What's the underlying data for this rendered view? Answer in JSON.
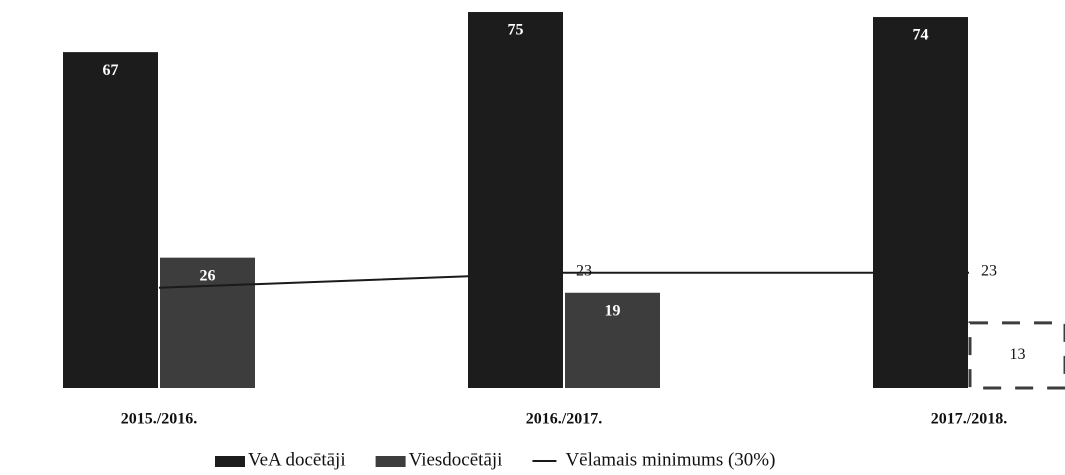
{
  "chart_data": {
    "type": "bar",
    "categories": [
      "2015./2016.",
      "2016./2017.",
      "2017./2018."
    ],
    "series": [
      {
        "name": "VeA docētāji",
        "color": "#1c1c1c",
        "values": [
          67,
          75,
          74
        ]
      },
      {
        "name": "Viesdocētāji",
        "color": "#3d3d3d",
        "values": [
          26,
          19,
          13
        ],
        "dashed": [
          false,
          false,
          true
        ]
      },
      {
        "name": "Vēlamais minimums (30%)",
        "type": "line",
        "color": "#1a1a1a",
        "values": [
          20,
          23,
          23
        ],
        "value_labels": [
          null,
          "23",
          "23"
        ]
      }
    ],
    "ylim": [
      0,
      77
    ],
    "grid": false
  }
}
